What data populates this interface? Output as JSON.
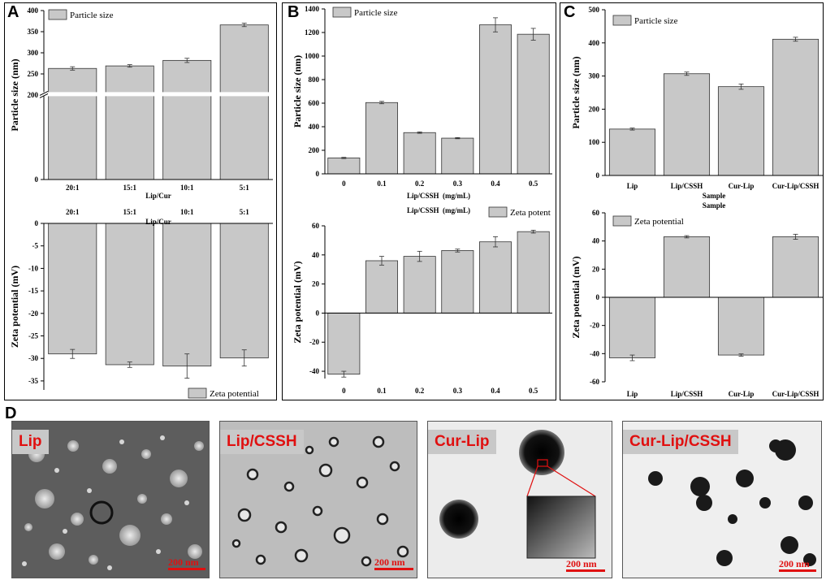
{
  "panels": {
    "a": "A",
    "b": "B",
    "c": "C",
    "d": "D"
  },
  "chart_data": [
    {
      "id": "A-size",
      "type": "bar",
      "categories": [
        "20:1",
        "15:1",
        "10:1",
        "5:1"
      ],
      "values": [
        263,
        269,
        282,
        366
      ],
      "errors": [
        4,
        3,
        5,
        4
      ],
      "legend": "Particle size",
      "ylabel": "Particle size (nm)",
      "xlabel": "Lip/Cur",
      "ylim": [
        0,
        400
      ],
      "yticks": [
        "0",
        "200",
        "250",
        "300",
        "350",
        "400"
      ],
      "axis_break": true
    },
    {
      "id": "A-zeta",
      "type": "bar",
      "categories": [
        "20:1",
        "15:1",
        "10:1",
        "5:1"
      ],
      "values": [
        -29.0,
        -31.4,
        -31.7,
        -29.9
      ],
      "errors": [
        1.0,
        0.6,
        2.7,
        1.8
      ],
      "legend": "Zeta potential",
      "ylabel": "Zeta potential (mV)",
      "xlabel": "Lip/Cur",
      "ylim": [
        -37,
        0
      ],
      "yticks": [
        "0",
        "-5",
        "-10",
        "-15",
        "-20",
        "-25",
        "-30",
        "-35"
      ]
    },
    {
      "id": "B-size",
      "type": "bar",
      "categories": [
        "0",
        "0.1",
        "0.2",
        "0.3",
        "0.4",
        "0.5"
      ],
      "values": [
        135,
        605,
        350,
        303,
        1265,
        1185
      ],
      "errors": [
        5,
        10,
        6,
        5,
        60,
        50
      ],
      "legend": "Particle size",
      "ylabel": "Particle size (nm)",
      "xlabel": "Lip/CSSH  (mg/mL)",
      "ylim": [
        0,
        1400
      ],
      "yticks": [
        "0",
        "200",
        "400",
        "600",
        "800",
        "1000",
        "1200",
        "1400"
      ]
    },
    {
      "id": "B-zeta",
      "type": "bar",
      "categories": [
        "0",
        "0.1",
        "0.2",
        "0.3",
        "0.4",
        "0.5"
      ],
      "values": [
        -42,
        36,
        39,
        43,
        49,
        56
      ],
      "errors": [
        2,
        3,
        3.5,
        1,
        3.5,
        1
      ],
      "legend": "Zeta potent",
      "ylabel": "Zeta potential (mV)",
      "xlabel": "Lip/CSSH  (mg/mL)",
      "ylim": [
        -45,
        60
      ],
      "yticks": [
        "-40",
        "-20",
        "0",
        "20",
        "40",
        "60"
      ]
    },
    {
      "id": "C-size",
      "type": "bar",
      "categories": [
        "Lip",
        "Lip/CSSH",
        "Cur-Lip",
        "Cur-Lip/CSSH"
      ],
      "values": [
        140,
        307,
        268,
        411
      ],
      "errors": [
        3,
        5,
        8,
        6
      ],
      "legend": "Particle size",
      "ylabel": "Particle size (nm)",
      "xlabel": "Sample",
      "ylim": [
        0,
        500
      ],
      "yticks": [
        "0",
        "100",
        "200",
        "300",
        "400",
        "500"
      ]
    },
    {
      "id": "C-zeta",
      "type": "bar",
      "categories": [
        "Lip",
        "Lip/CSSH",
        "Cur-Lip",
        "Cur-Lip/CSSH"
      ],
      "values": [
        -43,
        43,
        -41,
        43
      ],
      "errors": [
        2,
        0.8,
        0.8,
        1.8
      ],
      "legend": "Zeta potential",
      "ylabel": "Zeta potential (mV)",
      "xlabel": "Sample",
      "ylim": [
        -60,
        60
      ],
      "yticks": [
        "-60",
        "-40",
        "-20",
        "0",
        "20",
        "40",
        "60"
      ]
    }
  ],
  "tem_images": [
    {
      "label": "Lip",
      "scale": "200 nm"
    },
    {
      "label": "Lip/CSSH",
      "scale": "200 nm"
    },
    {
      "label": "Cur-Lip",
      "scale": "200 nm"
    },
    {
      "label": "Cur-Lip/CSSH",
      "scale": "200 nm"
    }
  ],
  "colors": {
    "bar": "#c8c8c8",
    "scale": "#e01010"
  }
}
